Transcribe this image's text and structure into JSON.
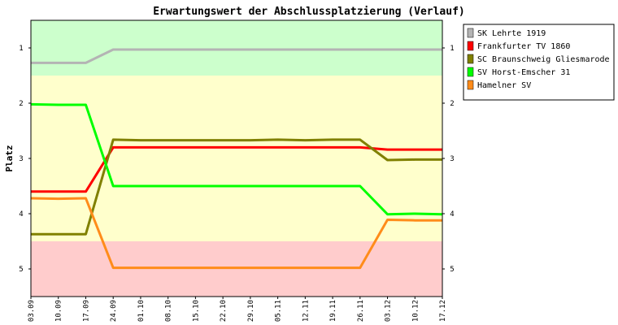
{
  "chart_data": {
    "type": "line",
    "title": "Erwartungswert der Abschlussplatzierung (Verlauf)",
    "ylabel": "Platz",
    "xlabel": "",
    "ylim": [
      5.5,
      0.5
    ],
    "y_inverted": true,
    "grid": false,
    "legend_position": "right",
    "yticks": [
      1,
      2,
      3,
      4,
      5
    ],
    "x_dates": [
      "03.09",
      "10.09",
      "17.09",
      "24.09",
      "01.10",
      "08.10",
      "15.10",
      "22.10",
      "29.10",
      "05.11",
      "12.11",
      "19.11",
      "26.11",
      "03.12",
      "10.12",
      "17.12"
    ],
    "bands": [
      {
        "from": 0.5,
        "to": 1.5,
        "color": "#ccffcc"
      },
      {
        "from": 1.5,
        "to": 4.5,
        "color": "#ffffcc"
      },
      {
        "from": 4.5,
        "to": 5.5,
        "color": "#ffcccc"
      }
    ],
    "series": [
      {
        "name": "SK Lehrte 1919",
        "color": "#b4b4b4",
        "values": [
          1.27,
          1.27,
          1.27,
          1.03,
          1.03,
          1.03,
          1.03,
          1.03,
          1.03,
          1.03,
          1.03,
          1.03,
          1.03,
          1.03,
          1.03,
          1.03
        ]
      },
      {
        "name": "Frankfurter TV 1860",
        "color": "#ff0000",
        "values": [
          3.6,
          3.6,
          3.6,
          2.8,
          2.8,
          2.8,
          2.8,
          2.8,
          2.8,
          2.8,
          2.8,
          2.8,
          2.8,
          2.84,
          2.84,
          2.84
        ]
      },
      {
        "name": "SC Braunschweig Gliesmarode",
        "color": "#808000",
        "values": [
          4.37,
          4.37,
          4.37,
          2.66,
          2.67,
          2.67,
          2.67,
          2.67,
          2.67,
          2.66,
          2.67,
          2.66,
          2.66,
          3.03,
          3.02,
          3.02
        ]
      },
      {
        "name": "SV Horst-Emscher 31",
        "color": "#00ff00",
        "values": [
          2.02,
          2.03,
          2.03,
          3.5,
          3.5,
          3.5,
          3.5,
          3.5,
          3.5,
          3.5,
          3.5,
          3.5,
          3.5,
          4.01,
          4.0,
          4.01
        ]
      },
      {
        "name": "Hamelner SV",
        "color": "#ff8c1a",
        "values": [
          3.72,
          3.73,
          3.72,
          4.98,
          4.98,
          4.98,
          4.98,
          4.98,
          4.98,
          4.98,
          4.98,
          4.98,
          4.98,
          4.11,
          4.12,
          4.12
        ]
      }
    ]
  }
}
